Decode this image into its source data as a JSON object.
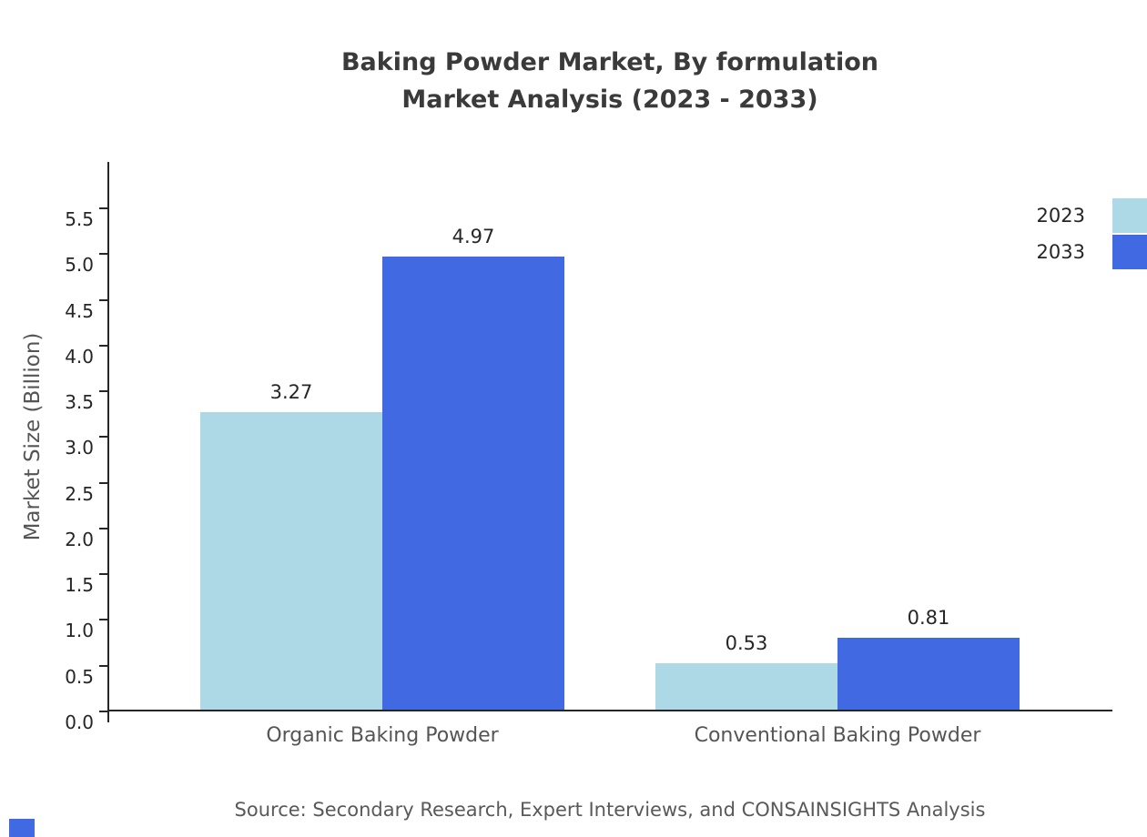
{
  "title": {
    "line1": "Baking Powder Market, By formulation",
    "line2": "Market Analysis (2023 - 2033)"
  },
  "source": "Source: Secondary Research, Expert Interviews, and CONSAINSIGHTS Analysis",
  "colors": {
    "series_2023": "#ADD8E6",
    "series_2033": "#4169E1",
    "axis": "#262626",
    "muted_text": "#555555"
  },
  "legend": {
    "position": "top-right",
    "items": [
      {
        "label": "2023",
        "color": "#ADD8E6"
      },
      {
        "label": "2033",
        "color": "#4169E1"
      }
    ]
  },
  "chart_data": {
    "type": "bar",
    "title": "Baking Powder Market, By formulation Market Analysis (2023 - 2033)",
    "categories": [
      "Organic Baking Powder",
      "Conventional Baking Powder"
    ],
    "series": [
      {
        "name": "2023",
        "color": "#ADD8E6",
        "values": [
          3.27,
          0.53
        ]
      },
      {
        "name": "2033",
        "color": "#4169E1",
        "values": [
          4.97,
          0.81
        ]
      }
    ],
    "xlabel": "",
    "ylabel": "Market Size (Billion)",
    "ylim": [
      0,
      5.5
    ],
    "yticks": [
      0.0,
      0.5,
      1.0,
      1.5,
      2.0,
      2.5,
      3.0,
      3.5,
      4.0,
      4.5,
      5.0,
      5.5
    ],
    "grid": false,
    "legend_position": "top-right",
    "value_labels": [
      "3.27",
      "4.97",
      "0.53",
      "0.81"
    ]
  }
}
